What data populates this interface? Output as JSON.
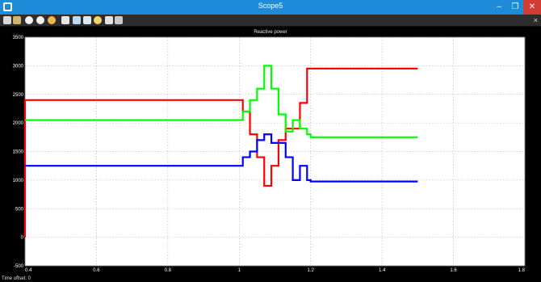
{
  "window": {
    "title": "Scope5"
  },
  "window_controls": {
    "minimize": "–",
    "maximize": "❐",
    "close": "✕"
  },
  "toolbar": {
    "icons": [
      "print-icon",
      "parameters-icon",
      "zoom-in-icon",
      "zoom-x-icon",
      "zoom-y-icon",
      "autoscale-icon",
      "save-axes-icon",
      "restore-axes-icon",
      "floating-scope-icon",
      "lock-icon",
      "signal-selector-icon"
    ],
    "pin": "×"
  },
  "status_bar": {
    "text": "Time offset: 0"
  },
  "colors": {
    "series_1": "#ff0000",
    "series_2": "#00ff00",
    "series_3": "#0000ff"
  },
  "chart_data": {
    "type": "line",
    "title": "Reactive power",
    "xlabel": "",
    "ylabel": "",
    "xlim": [
      0.4,
      1.8
    ],
    "ylim": [
      -500,
      3500
    ],
    "x_ticks": [
      0.4,
      0.6,
      0.8,
      1,
      1.2,
      1.4,
      1.6,
      1.8
    ],
    "x_tick_labels": [
      "0.4",
      "0.6",
      "0.8",
      "1",
      "1.2",
      "1.4",
      "1.6",
      "1.8"
    ],
    "y_ticks": [
      -500,
      0,
      500,
      1000,
      1500,
      2000,
      2500,
      3000,
      3500
    ],
    "y_tick_labels": [
      "-500",
      "0",
      "500",
      "1000",
      "1500",
      "2000",
      "2500",
      "3000",
      "3500"
    ],
    "grid": true,
    "legend": "none",
    "series": [
      {
        "color": "#ff0000",
        "x": [
          0.4,
          0.4,
          1.01,
          1.01,
          1.03,
          1.03,
          1.05,
          1.05,
          1.07,
          1.07,
          1.09,
          1.09,
          1.11,
          1.11,
          1.13,
          1.13,
          1.15,
          1.15,
          1.17,
          1.17,
          1.19,
          1.19,
          1.5
        ],
        "y": [
          0,
          2400,
          2400,
          2200,
          2200,
          1800,
          1800,
          1400,
          1400,
          900,
          900,
          1250,
          1250,
          1700,
          1700,
          1900,
          1900,
          1900,
          1900,
          2350,
          2350,
          2950,
          2950
        ]
      },
      {
        "color": "#00ff00",
        "x": [
          0.4,
          1.01,
          1.01,
          1.03,
          1.03,
          1.05,
          1.05,
          1.07,
          1.07,
          1.09,
          1.09,
          1.11,
          1.11,
          1.13,
          1.13,
          1.15,
          1.15,
          1.17,
          1.17,
          1.19,
          1.19,
          1.2,
          1.2,
          1.5
        ],
        "y": [
          2050,
          2050,
          2200,
          2200,
          2400,
          2400,
          2600,
          2600,
          3000,
          3000,
          2600,
          2600,
          2150,
          2150,
          1850,
          1850,
          2050,
          2050,
          1900,
          1900,
          1800,
          1800,
          1750,
          1750
        ]
      },
      {
        "color": "#0000ff",
        "x": [
          0.4,
          1.01,
          1.01,
          1.03,
          1.03,
          1.05,
          1.05,
          1.07,
          1.07,
          1.09,
          1.09,
          1.11,
          1.11,
          1.13,
          1.13,
          1.15,
          1.15,
          1.17,
          1.17,
          1.19,
          1.19,
          1.2,
          1.2,
          1.5
        ],
        "y": [
          1250,
          1250,
          1400,
          1400,
          1500,
          1500,
          1700,
          1700,
          1800,
          1800,
          1650,
          1650,
          1650,
          1650,
          1400,
          1400,
          1000,
          1000,
          1250,
          1250,
          1000,
          1000,
          975,
          975
        ]
      }
    ]
  }
}
